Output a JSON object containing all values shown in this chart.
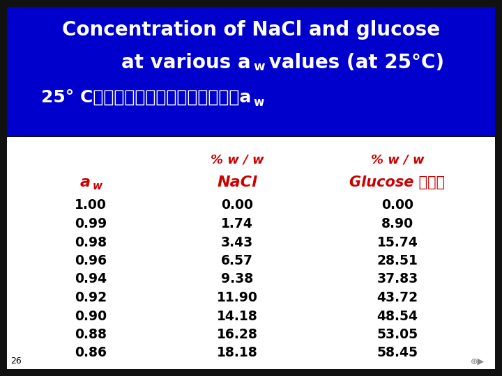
{
  "title_line1": "Concentration of NaCl and glucose",
  "title_line2_pre": "at various a",
  "title_line2_sub": "w",
  "title_line2_post": " values (at 25°C)",
  "title_line3_pre": "25° C时不同浓度食盐和葡萄糖溶液的a",
  "title_line3_sub": "w",
  "bg_color": "#0000cc",
  "white_color": "#ffffff",
  "red_color": "#cc0000",
  "black_color": "#000000",
  "dark_bg": "#111111",
  "header_pct1": "% w / w",
  "header_nacl": "NaCl",
  "header_pct2": "% w / w",
  "header_glucose": "Glucose 葡萄糖",
  "col_aw_pre": "a",
  "col_aw_sub": "w",
  "aw_values": [
    "1.00",
    "0.99",
    "0.98",
    "0.96",
    "0.94",
    "0.92",
    "0.90",
    "0.88",
    "0.86"
  ],
  "nacl_values": [
    "0.00",
    "1.74",
    "3.43",
    "6.57",
    "9.38",
    "11.90",
    "14.18",
    "16.28",
    "18.18"
  ],
  "glucose_values": [
    "0.00",
    "8.90",
    "15.74",
    "28.51",
    "37.83",
    "43.72",
    "48.54",
    "53.05",
    "58.45"
  ],
  "page_num": "26",
  "fig_width": 7.2,
  "fig_height": 5.4,
  "dpi": 100
}
